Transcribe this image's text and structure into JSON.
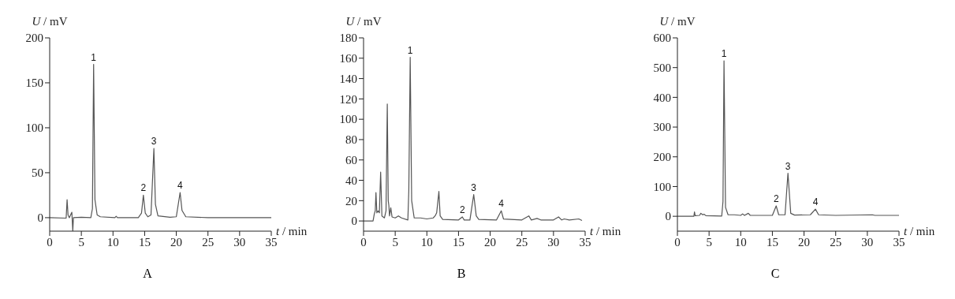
{
  "chart_data": [
    {
      "type": "line",
      "title": "A",
      "xlabel": "t / min",
      "ylabel": "U / mV",
      "xlim": [
        0,
        35
      ],
      "xticks": [
        0,
        5,
        10,
        15,
        20,
        25,
        30,
        35
      ],
      "ylim": [
        -15,
        200
      ],
      "yticks": [
        0,
        50,
        100,
        150,
        200
      ],
      "x": [
        0,
        2.6,
        2.75,
        2.9,
        3.1,
        3.5,
        3.65,
        3.75,
        5,
        6.5,
        6.75,
        6.94,
        7.15,
        7.5,
        8,
        10.3,
        10.5,
        10.7,
        14,
        14.5,
        14.8,
        15.1,
        15.5,
        16,
        16.46,
        16.7,
        17.1,
        19,
        20,
        20.6,
        20.9,
        21.5,
        25,
        35
      ],
      "series": [
        {
          "color": "#555555",
          "values": [
            0,
            -0.5,
            20,
            3,
            0,
            6,
            -15,
            0,
            0.5,
            0,
            10,
            170.5,
            20,
            3,
            1,
            0,
            1.5,
            0,
            0,
            5,
            25,
            5,
            1,
            3,
            77,
            15,
            2,
            0.5,
            1,
            28,
            8,
            1,
            0,
            0
          ]
        }
      ],
      "annotations": [
        {
          "text": "1",
          "x": 6.94,
          "y": 170.5
        },
        {
          "text": "2",
          "x": 14.8,
          "y": 25
        },
        {
          "text": "3",
          "x": 16.46,
          "y": 77
        },
        {
          "text": "4",
          "x": 20.6,
          "y": 28
        }
      ]
    },
    {
      "type": "line",
      "title": "B",
      "xlabel": "t / min",
      "ylabel": "U / mV",
      "xlim": [
        0,
        35
      ],
      "xticks": [
        0,
        5,
        10,
        15,
        20,
        25,
        30,
        35
      ],
      "ylim": [
        -10,
        180
      ],
      "yticks": [
        0,
        20,
        40,
        60,
        80,
        100,
        120,
        140,
        160,
        180
      ],
      "x": [
        0,
        1.5,
        1.7,
        1.85,
        1.96,
        2.1,
        2.3,
        2.5,
        2.7,
        2.9,
        3.3,
        3.55,
        3.75,
        3.9,
        4.0,
        4.1,
        4.3,
        4.5,
        5,
        5.5,
        6,
        7,
        7.15,
        7.37,
        7.6,
        8,
        9,
        10,
        11,
        11.3,
        11.55,
        11.9,
        12.1,
        12.5,
        15,
        15.6,
        15.9,
        16.8,
        17.4,
        17.8,
        18.2,
        21,
        21.75,
        22.1,
        25,
        26.1,
        26.5,
        27.4,
        28,
        30,
        30.8,
        31.3,
        31.7,
        32.5,
        34,
        34.5
      ],
      "series": [
        {
          "color": "#555555",
          "values": [
            0,
            0,
            7,
            10,
            28,
            8,
            10,
            8,
            48,
            5,
            3,
            10,
            115,
            20,
            15,
            5,
            13,
            4,
            3,
            5,
            3,
            1,
            30,
            161,
            20,
            3,
            3,
            2,
            3,
            5,
            8,
            29,
            5,
            1.5,
            1,
            4,
            1,
            1,
            26,
            5,
            1.5,
            1,
            10,
            2,
            1,
            5,
            1,
            2.5,
            1,
            1,
            4,
            1,
            2,
            1,
            2,
            0.5
          ]
        }
      ],
      "annotations": [
        {
          "text": "1",
          "x": 7.37,
          "y": 161
        },
        {
          "text": "2",
          "x": 15.6,
          "y": 4
        },
        {
          "text": "3",
          "x": 17.4,
          "y": 26
        },
        {
          "text": "4",
          "x": 21.75,
          "y": 10
        }
      ]
    },
    {
      "type": "line",
      "title": "C",
      "xlabel": "t / min",
      "ylabel": "U / mV",
      "xlim": [
        0,
        35
      ],
      "xticks": [
        0,
        5,
        10,
        15,
        20,
        25,
        30,
        35
      ],
      "ylim": [
        -50,
        600
      ],
      "yticks": [
        0,
        100,
        200,
        300,
        400,
        500,
        600
      ],
      "x": [
        0,
        2.6,
        2.7,
        2.8,
        3.5,
        3.7,
        4,
        4.2,
        4.5,
        7,
        7.2,
        7.36,
        7.6,
        8,
        9,
        10,
        10.3,
        10.6,
        11.2,
        11.5,
        15,
        15.6,
        16,
        17,
        17.46,
        17.9,
        18.5,
        21,
        21.8,
        22.3,
        25,
        30.8,
        31.2,
        35
      ],
      "series": [
        {
          "color": "#555555",
          "values": [
            0,
            0,
            15,
            2,
            3,
            10,
            5,
            7,
            2,
            1,
            50,
            523,
            30,
            5,
            5,
            3,
            8,
            3,
            10,
            3,
            3,
            35,
            5,
            5,
            145,
            10,
            4,
            5,
            24,
            5,
            3,
            5,
            3,
            3
          ]
        }
      ],
      "annotations": [
        {
          "text": "1",
          "x": 7.36,
          "y": 523
        },
        {
          "text": "2",
          "x": 15.6,
          "y": 35
        },
        {
          "text": "3",
          "x": 17.46,
          "y": 145
        },
        {
          "text": "4",
          "x": 21.8,
          "y": 24
        }
      ]
    }
  ]
}
